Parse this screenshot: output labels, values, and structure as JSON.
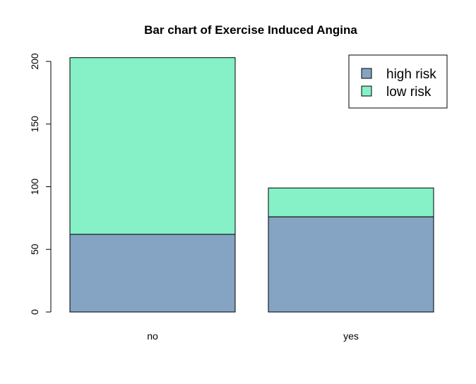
{
  "chart_data": {
    "type": "bar",
    "stacked": true,
    "title": "Bar chart of Exercise Induced Angina",
    "xlabel": "",
    "ylabel": "",
    "categories": [
      "no",
      "yes"
    ],
    "series": [
      {
        "name": "high risk",
        "values": [
          62,
          76
        ],
        "color": "#85A3C3"
      },
      {
        "name": "low risk",
        "values": [
          141,
          23
        ],
        "color": "#86F0C6"
      }
    ],
    "ylim": [
      0,
      203
    ],
    "yticks": [
      0,
      50,
      100,
      150,
      200
    ],
    "grid": false,
    "legend": {
      "position": "top-right"
    }
  }
}
